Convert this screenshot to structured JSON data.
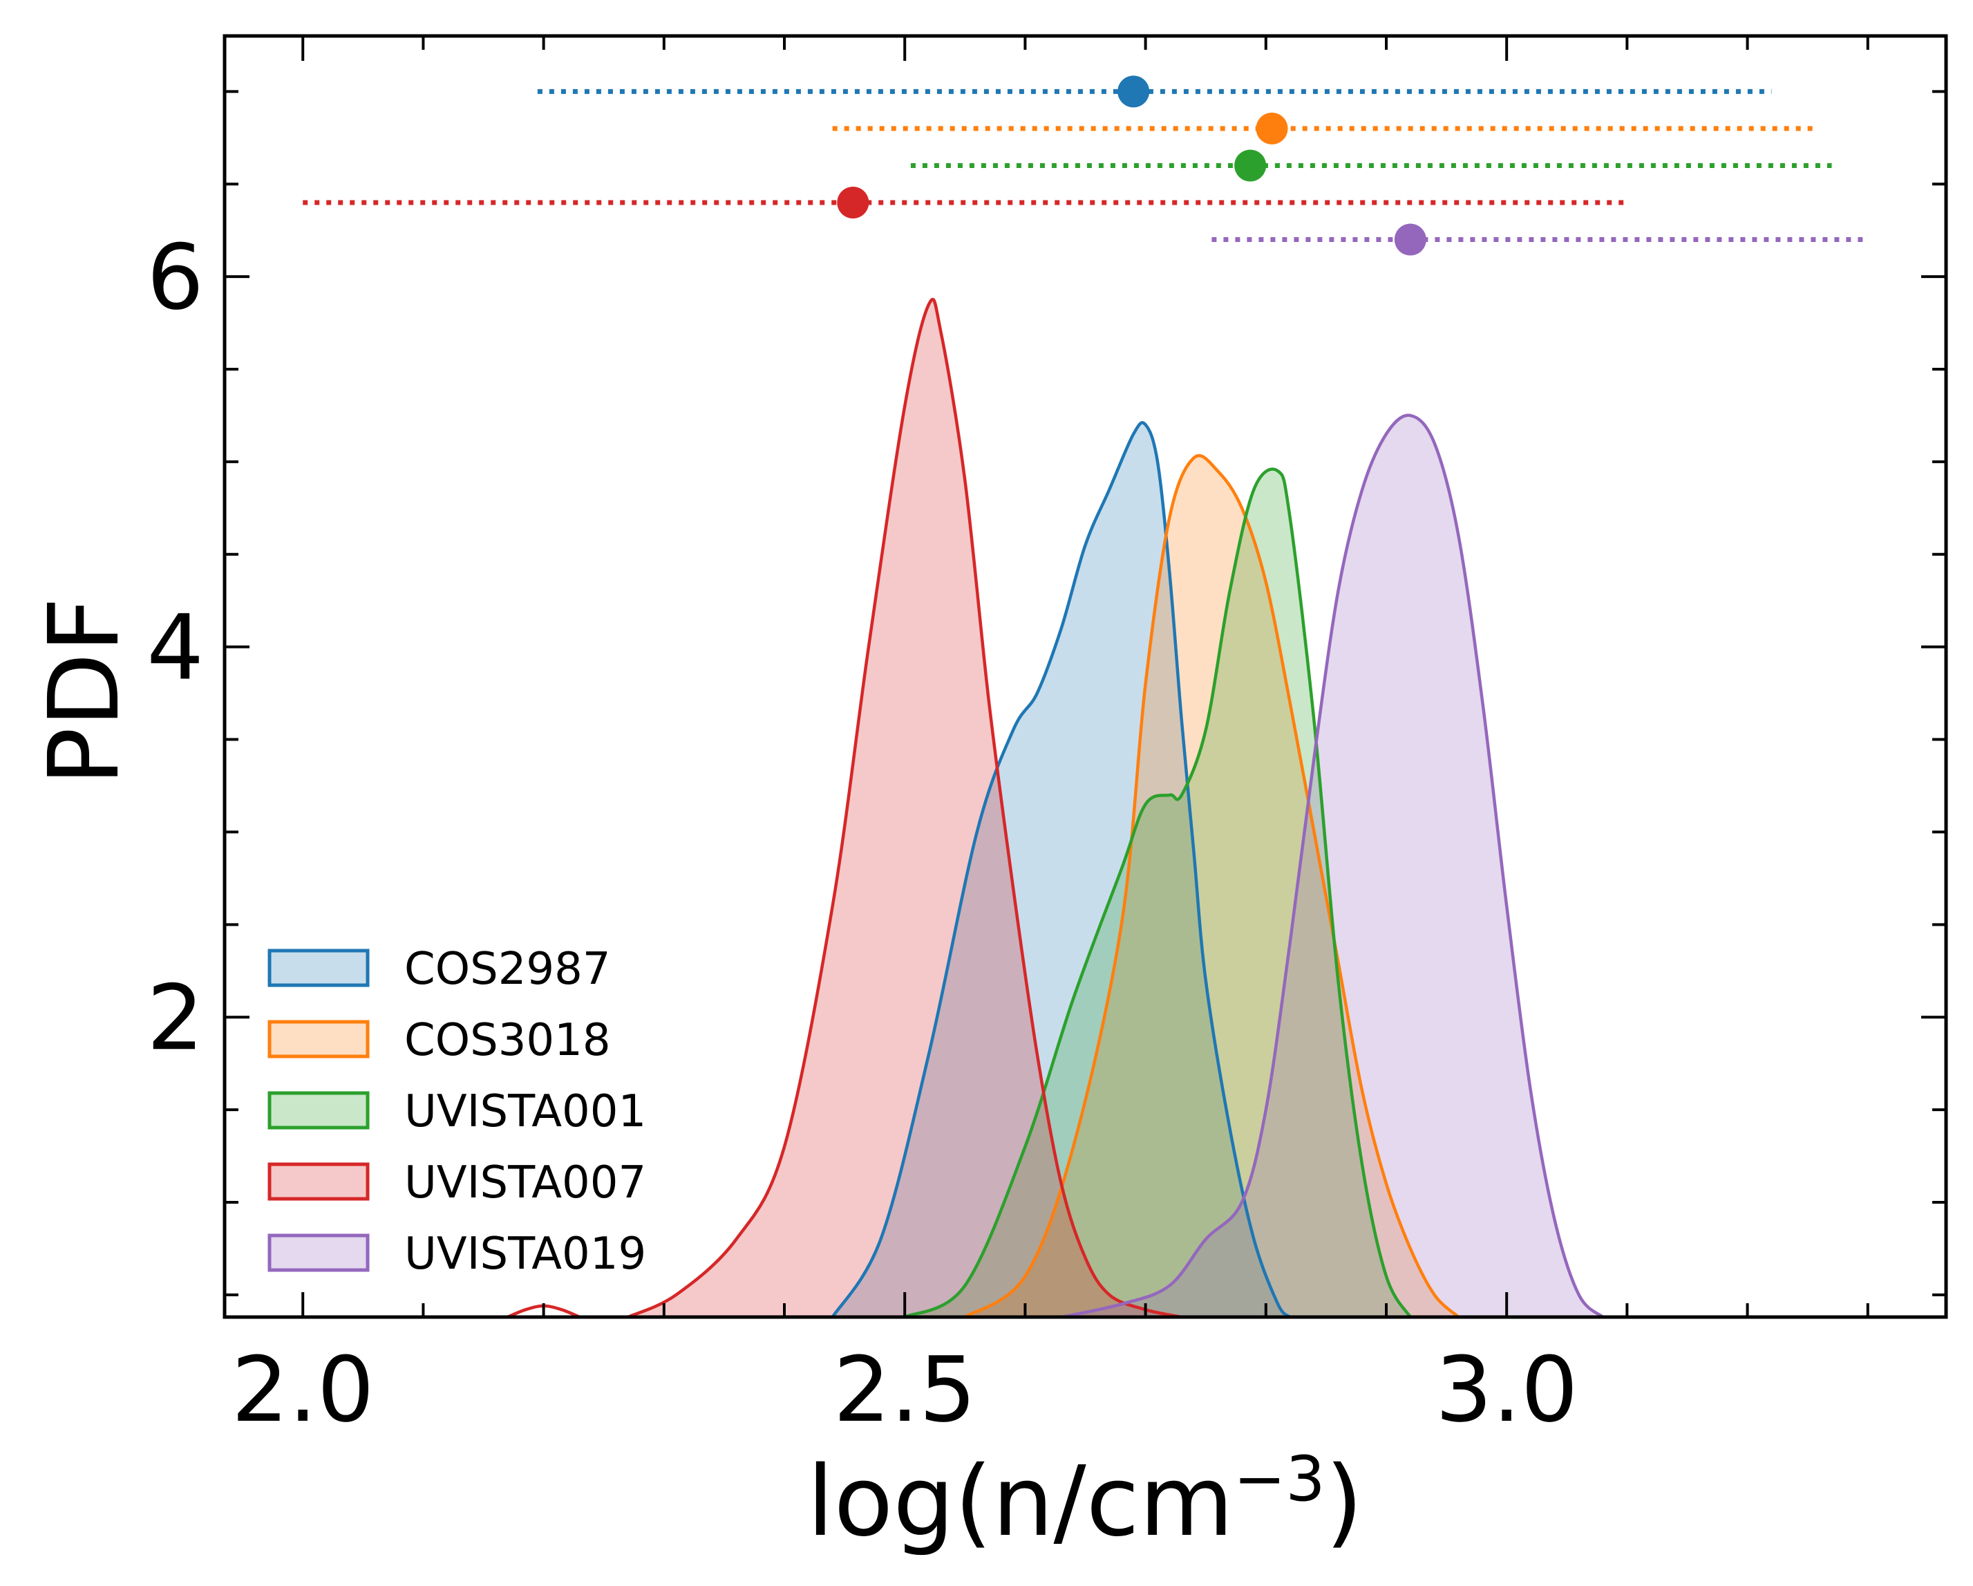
{
  "chart_data": {
    "type": "area",
    "title": "",
    "xlabel": "log(n/cm",
    "xlabel_sup": "−3",
    "xlabel_close": ")",
    "ylabel": "PDF",
    "xlim": [
      1.935,
      3.365
    ],
    "ylim": [
      0.38,
      7.3
    ],
    "x_ticks": [
      2.0,
      2.5,
      3.0
    ],
    "x_tick_labels": [
      "2.0",
      "2.5",
      "3.0"
    ],
    "y_ticks": [
      2,
      4,
      6
    ],
    "y_tick_labels": [
      "2",
      "4",
      "6"
    ],
    "legend_position": "lower-left",
    "series": [
      {
        "name": "COS2987",
        "color": "#1f77b4",
        "summary": {
          "median": 2.69,
          "low": 2.195,
          "high": 3.22,
          "y": 7.0
        },
        "pdf": [
          [
            2.44,
            0.38
          ],
          [
            2.48,
            0.8
          ],
          [
            2.52,
            1.8
          ],
          [
            2.56,
            3.0
          ],
          [
            2.59,
            3.55
          ],
          [
            2.61,
            3.75
          ],
          [
            2.63,
            4.1
          ],
          [
            2.65,
            4.55
          ],
          [
            2.67,
            4.85
          ],
          [
            2.69,
            5.15
          ],
          [
            2.7,
            5.2
          ],
          [
            2.71,
            5.0
          ],
          [
            2.72,
            4.4
          ],
          [
            2.73,
            3.6
          ],
          [
            2.74,
            2.9
          ],
          [
            2.75,
            2.2
          ],
          [
            2.77,
            1.4
          ],
          [
            2.79,
            0.8
          ],
          [
            2.81,
            0.45
          ],
          [
            2.82,
            0.38
          ]
        ]
      },
      {
        "name": "COS3018",
        "color": "#ff7f0e",
        "summary": {
          "median": 2.805,
          "low": 2.44,
          "high": 3.255,
          "y": 6.8
        },
        "pdf": [
          [
            2.55,
            0.38
          ],
          [
            2.6,
            0.6
          ],
          [
            2.64,
            1.3
          ],
          [
            2.68,
            2.5
          ],
          [
            2.7,
            3.8
          ],
          [
            2.72,
            4.7
          ],
          [
            2.74,
            5.02
          ],
          [
            2.76,
            4.95
          ],
          [
            2.78,
            4.75
          ],
          [
            2.8,
            4.35
          ],
          [
            2.82,
            3.7
          ],
          [
            2.84,
            3.0
          ],
          [
            2.86,
            2.3
          ],
          [
            2.88,
            1.6
          ],
          [
            2.9,
            1.1
          ],
          [
            2.92,
            0.75
          ],
          [
            2.94,
            0.5
          ],
          [
            2.96,
            0.38
          ]
        ]
      },
      {
        "name": "UVISTA001",
        "color": "#2ca02c",
        "summary": {
          "median": 2.787,
          "low": 2.505,
          "high": 3.27,
          "y": 6.6
        },
        "pdf": [
          [
            2.5,
            0.38
          ],
          [
            2.55,
            0.55
          ],
          [
            2.6,
            1.3
          ],
          [
            2.64,
            2.1
          ],
          [
            2.68,
            2.8
          ],
          [
            2.7,
            3.15
          ],
          [
            2.72,
            3.2
          ],
          [
            2.73,
            3.2
          ],
          [
            2.75,
            3.55
          ],
          [
            2.77,
            4.3
          ],
          [
            2.79,
            4.85
          ],
          [
            2.81,
            4.95
          ],
          [
            2.82,
            4.7
          ],
          [
            2.84,
            3.6
          ],
          [
            2.86,
            2.2
          ],
          [
            2.88,
            1.2
          ],
          [
            2.9,
            0.6
          ],
          [
            2.92,
            0.38
          ]
        ]
      },
      {
        "name": "UVISTA007",
        "color": "#d62728",
        "summary": {
          "median": 2.457,
          "low": 2.0,
          "high": 3.1,
          "y": 6.4
        },
        "pdf": [
          [
            2.27,
            0.38
          ],
          [
            2.31,
            0.5
          ],
          [
            2.36,
            0.8
          ],
          [
            2.4,
            1.3
          ],
          [
            2.44,
            2.6
          ],
          [
            2.47,
            4.0
          ],
          [
            2.5,
            5.3
          ],
          [
            2.52,
            5.85
          ],
          [
            2.53,
            5.7
          ],
          [
            2.55,
            4.9
          ],
          [
            2.57,
            3.7
          ],
          [
            2.59,
            2.7
          ],
          [
            2.61,
            1.8
          ],
          [
            2.63,
            1.1
          ],
          [
            2.65,
            0.7
          ],
          [
            2.67,
            0.5
          ],
          [
            2.7,
            0.42
          ],
          [
            2.73,
            0.38
          ]
        ]
      },
      {
        "name": "UVISTA019",
        "color": "#9467bd",
        "summary": {
          "median": 2.92,
          "low": 2.755,
          "high": 3.3,
          "y": 6.2
        },
        "pdf": [
          [
            2.63,
            0.38
          ],
          [
            2.68,
            0.45
          ],
          [
            2.72,
            0.55
          ],
          [
            2.75,
            0.8
          ],
          [
            2.78,
            1.0
          ],
          [
            2.8,
            1.5
          ],
          [
            2.82,
            2.4
          ],
          [
            2.84,
            3.4
          ],
          [
            2.86,
            4.3
          ],
          [
            2.88,
            4.85
          ],
          [
            2.9,
            5.15
          ],
          [
            2.92,
            5.25
          ],
          [
            2.94,
            5.1
          ],
          [
            2.96,
            4.6
          ],
          [
            2.98,
            3.7
          ],
          [
            3.0,
            2.6
          ],
          [
            3.02,
            1.6
          ],
          [
            3.04,
            0.9
          ],
          [
            3.06,
            0.5
          ],
          [
            3.08,
            0.38
          ]
        ]
      }
    ],
    "extra_curves": [
      {
        "series": "UVISTA007",
        "points": [
          [
            2.17,
            0.38
          ],
          [
            2.185,
            0.42
          ],
          [
            2.2,
            0.44
          ],
          [
            2.215,
            0.42
          ],
          [
            2.23,
            0.38
          ]
        ]
      }
    ]
  }
}
